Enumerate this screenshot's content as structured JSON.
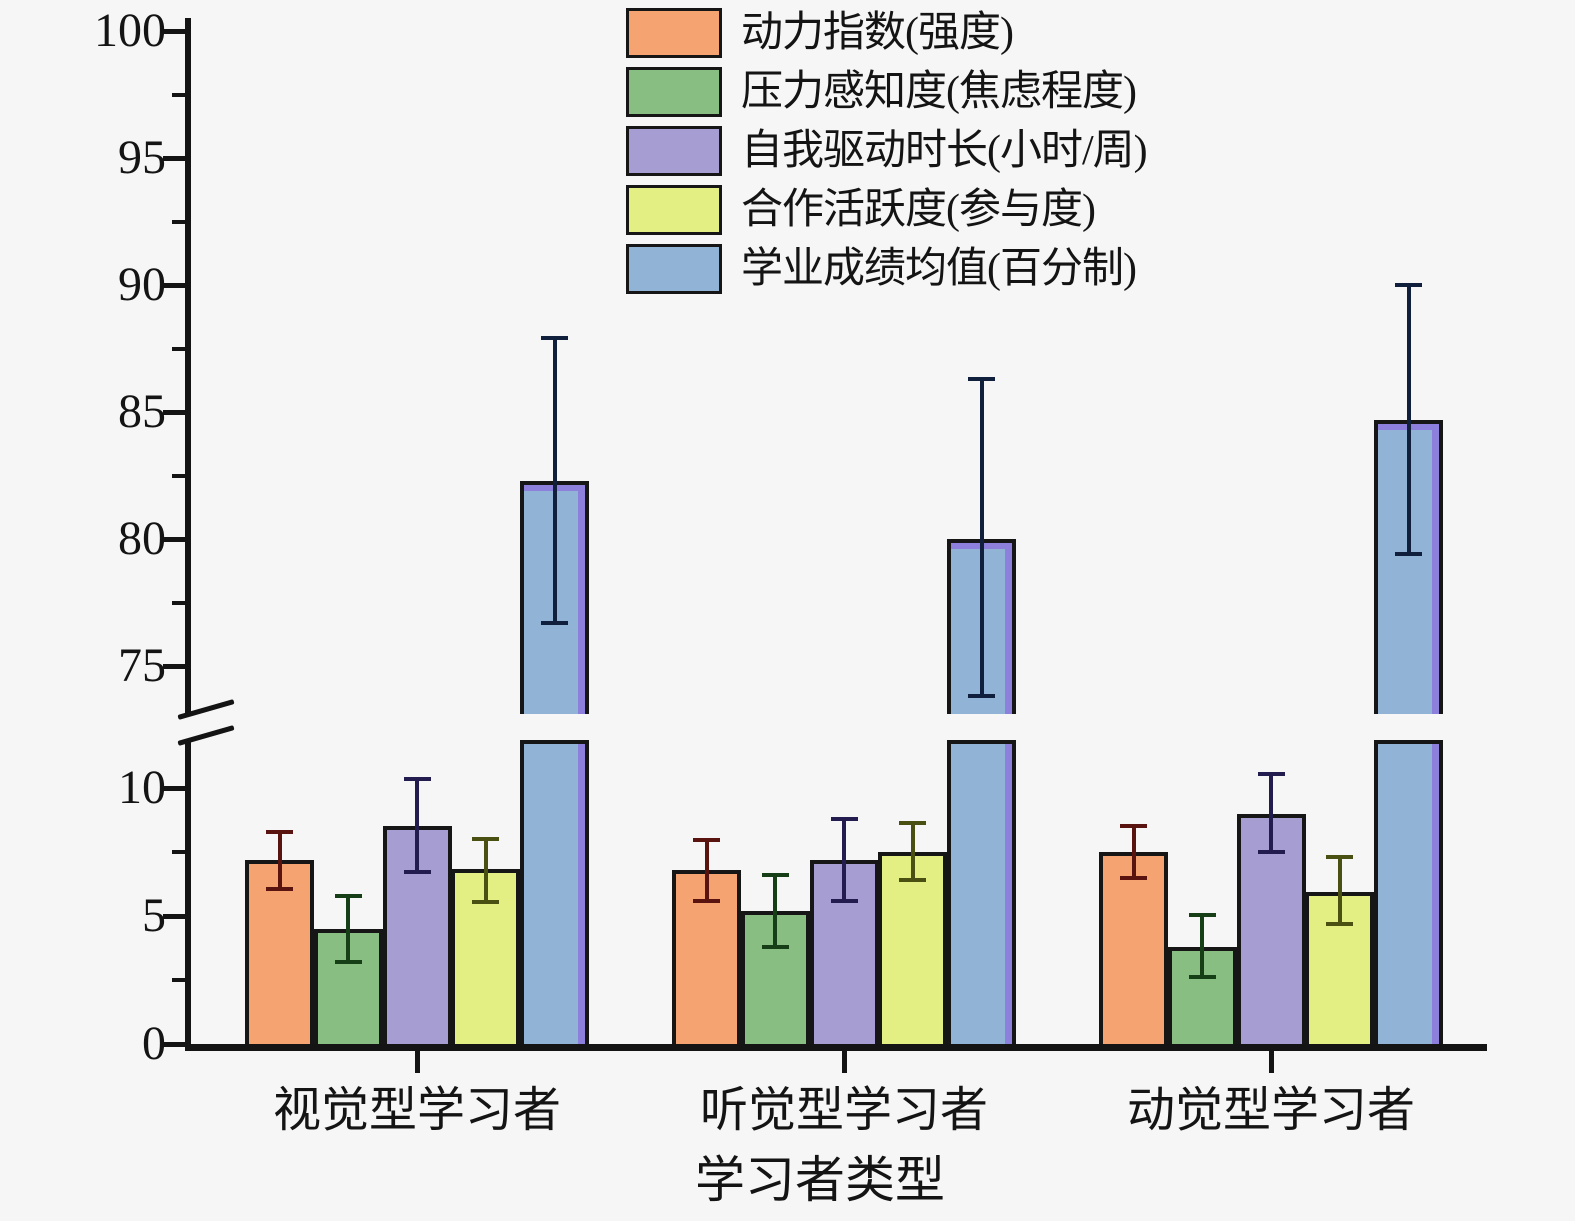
{
  "background": "#f6f6f6",
  "text_color": "#141414",
  "axis_color": "#141414",
  "chart_data": {
    "type": "bar",
    "title": "",
    "xlabel": "学习者类型",
    "ylabel": "",
    "grid": false,
    "legend_position": "top-center",
    "categories": [
      "视觉型学习者",
      "听觉型学习者",
      "动觉型学习者"
    ],
    "y_axis": {
      "broken": true,
      "lower_range": [
        0,
        11.9
      ],
      "lower_ticks": [
        0,
        5,
        10
      ],
      "lower_minor_ticks": [
        2.5,
        7.5
      ],
      "upper_range": [
        73.1,
        100.4
      ],
      "upper_ticks": [
        75,
        80,
        85,
        90,
        95,
        100
      ],
      "upper_minor_ticks": [
        77.5,
        82.5,
        87.5,
        92.5,
        97.5
      ]
    },
    "series": [
      {
        "name": "动力指数(强度)",
        "color": "#F6A372",
        "error_color": "#5a1410",
        "values": [
          7.2,
          6.8,
          7.5
        ],
        "error_low": [
          6.05,
          5.6,
          6.5
        ],
        "error_high": [
          8.3,
          7.95,
          8.5
        ],
        "on_upper_panel": false
      },
      {
        "name": "压力感知度(焦虑程度)",
        "color": "#89BE83",
        "error_color": "#163f18",
        "values": [
          4.5,
          5.2,
          3.8
        ],
        "error_low": [
          3.2,
          3.8,
          2.6
        ],
        "error_high": [
          5.8,
          6.6,
          5.05
        ],
        "on_upper_panel": false
      },
      {
        "name": "自我驱动时长(小时/周)",
        "color": "#A69ED2",
        "error_color": "#221d4e",
        "values": [
          8.5,
          7.2,
          9.0
        ],
        "error_low": [
          6.7,
          5.6,
          7.5
        ],
        "error_high": [
          10.35,
          8.8,
          10.55
        ],
        "on_upper_panel": false
      },
      {
        "name": "合作活跃度(参与度)",
        "color": "#E3EF83",
        "error_color": "#4a4f12",
        "values": [
          6.85,
          7.5,
          5.95
        ],
        "error_low": [
          5.55,
          6.4,
          4.7
        ],
        "error_high": [
          8.0,
          8.65,
          7.3
        ],
        "on_upper_panel": false
      },
      {
        "name": "学业成绩均值(百分制)",
        "color": "#91B4D6",
        "error_color": "#101f3c",
        "accent_color": "#8d80dd",
        "values": [
          82.3,
          80.0,
          84.7
        ],
        "error_low": [
          76.7,
          73.8,
          79.4
        ],
        "error_high": [
          87.9,
          86.3,
          90.0
        ],
        "on_upper_panel": true
      }
    ]
  }
}
